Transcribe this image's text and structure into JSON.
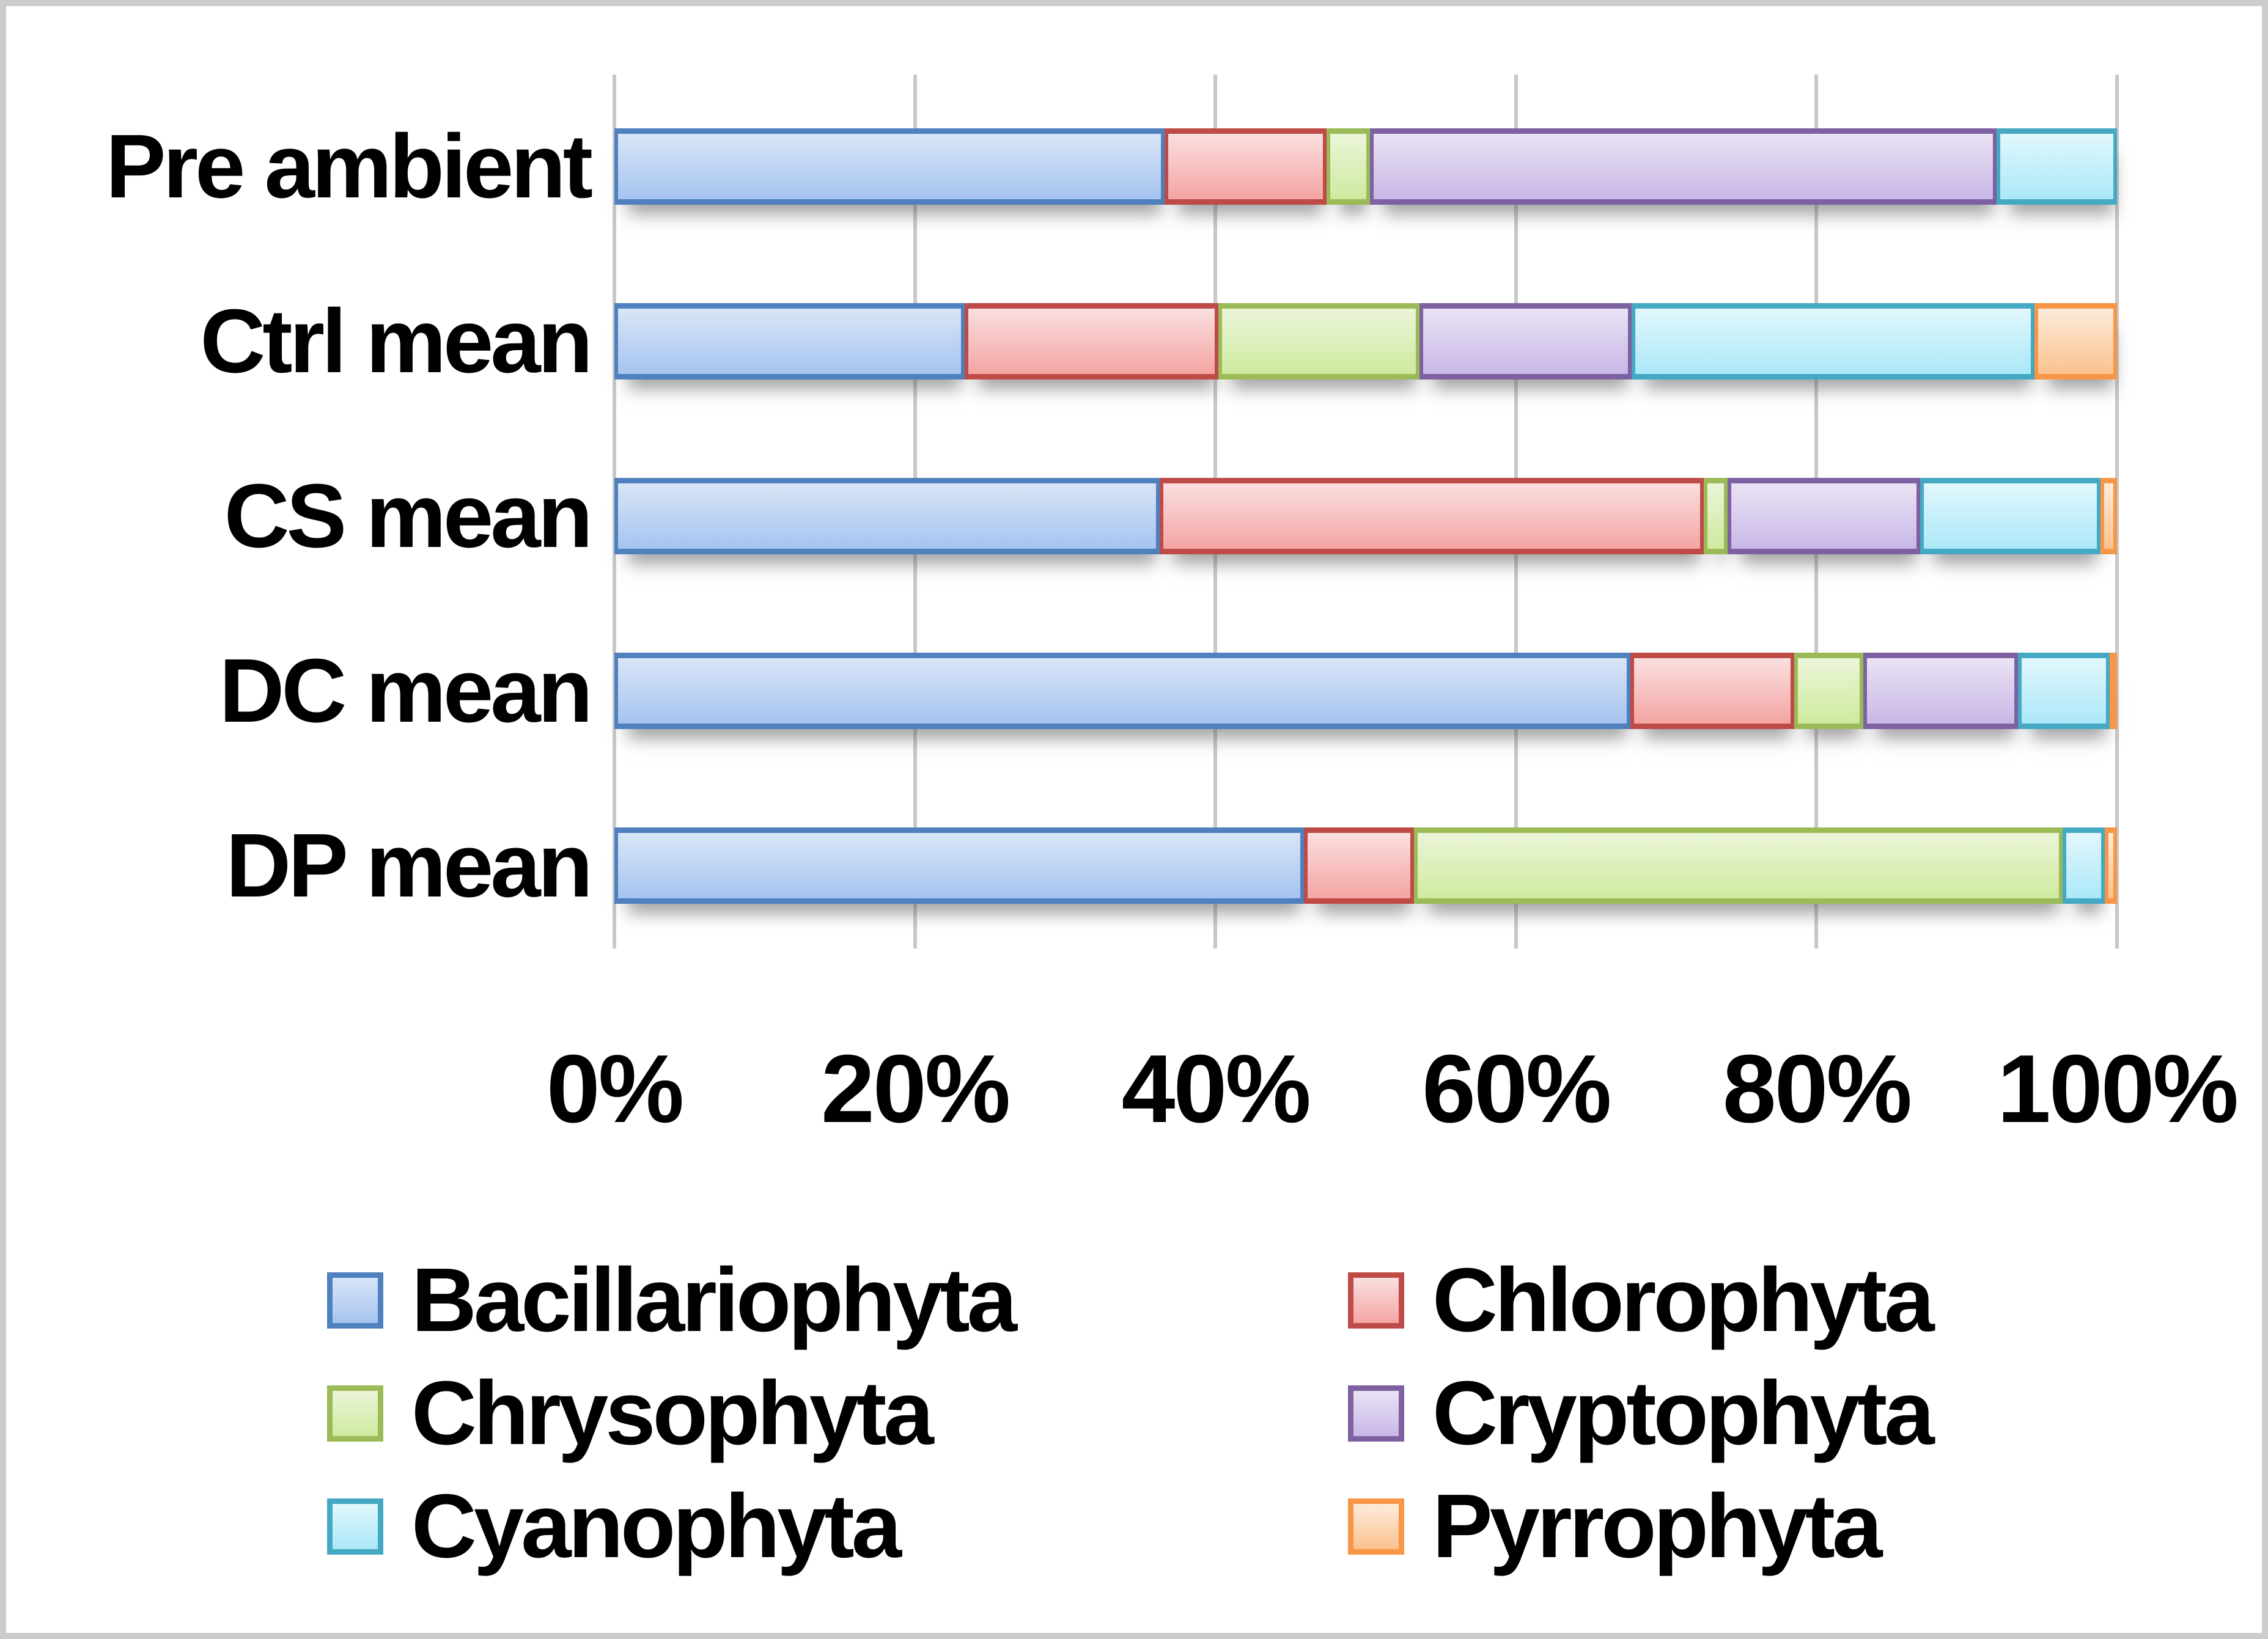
{
  "chart_data": {
    "type": "bar",
    "variant": "horizontal-stacked-100-percent",
    "title": "",
    "xlabel": "",
    "ylabel": "",
    "categories": [
      "Pre ambient",
      "Ctrl mean",
      "CS mean",
      "DC mean",
      "DP mean"
    ],
    "series": [
      {
        "name": "Bacillariophyta",
        "values": [
          36.6,
          23.3,
          36.3,
          67.6,
          45.9
        ],
        "border": "#4E81BD",
        "fill_top": "#D9E5F7",
        "fill_bottom": "#A6C4F0"
      },
      {
        "name": "Chlorophyta",
        "values": [
          10.8,
          16.9,
          36.2,
          10.9,
          7.3
        ],
        "border": "#BE4B48",
        "fill_top": "#FADFDF",
        "fill_bottom": "#F4A5A3"
      },
      {
        "name": "Chrysophyta",
        "values": [
          2.9,
          13.4,
          1.6,
          4.6,
          43.2
        ],
        "border": "#9BBB59",
        "fill_top": "#EBF5D9",
        "fill_bottom": "#CFEA9F"
      },
      {
        "name": "Cryptophyta",
        "values": [
          41.7,
          14.1,
          12.8,
          10.3,
          0
        ],
        "border": "#7E61A1",
        "fill_top": "#EAE3F4",
        "fill_bottom": "#C9B8E7"
      },
      {
        "name": "Cyanophyta",
        "values": [
          8.0,
          26.8,
          12.0,
          6.1,
          2.8
        ],
        "border": "#45A9C4",
        "fill_top": "#E2F7FC",
        "fill_bottom": "#ABE8F9"
      },
      {
        "name": "Pyrrophyta",
        "values": [
          0,
          5.5,
          1.1,
          0.5,
          0.8
        ],
        "border": "#F79646",
        "fill_top": "#FDEBDB",
        "fill_bottom": "#FAC28F"
      }
    ],
    "x_axis": {
      "min": 0,
      "max": 100,
      "tick_step": 20,
      "ticks": [
        "0%",
        "20%",
        "40%",
        "60%",
        "80%",
        "100%"
      ]
    },
    "grid": true,
    "gridline_color": "#C8C8C8",
    "panel_border_color": "#CCCCCC",
    "text_color": "#000000",
    "legend_position": "bottom-two-columns",
    "legend_order": [
      "Bacillariophyta",
      "Chlorophyta",
      "Chrysophyta",
      "Cryptophyta",
      "Cyanophyta",
      "Pyrrophyta"
    ]
  }
}
